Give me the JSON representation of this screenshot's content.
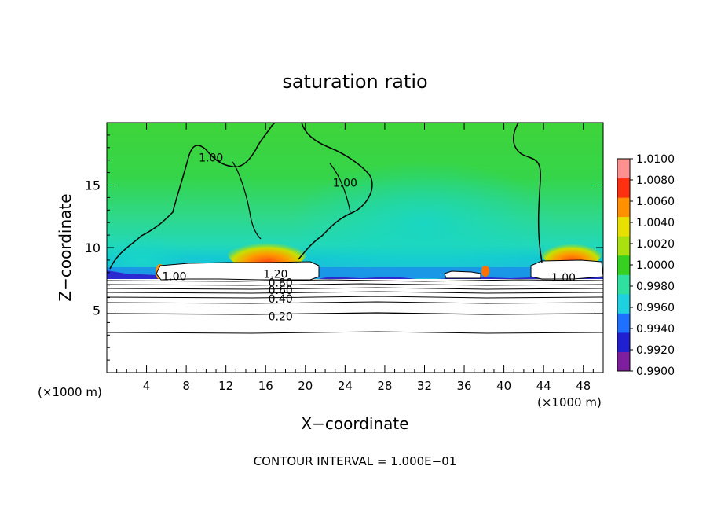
{
  "chart_data": {
    "type": "heatmap",
    "title": "saturation ratio",
    "xlabel": "X−coordinate",
    "ylabel": "Z−coordinate",
    "x_unit_left": "(×1000 m)",
    "x_unit_right": "(×1000 m)",
    "footer": "CONTOUR INTERVAL = 1.000E−01",
    "xlim": [
      0,
      50
    ],
    "ylim": [
      0,
      20
    ],
    "x_ticks": [
      4,
      8,
      12,
      16,
      20,
      24,
      28,
      32,
      36,
      40,
      44,
      48
    ],
    "x_tick_labels": [
      "4",
      "8",
      "12",
      "16",
      "20",
      "24",
      "28",
      "32",
      "36",
      "40",
      "44",
      "48"
    ],
    "y_ticks": [
      5,
      10,
      15
    ],
    "y_tick_labels": [
      "5",
      "10",
      "15"
    ],
    "colorbar": {
      "ticks": [
        {
          "value": 1.01,
          "label": "1.0100"
        },
        {
          "value": 1.008,
          "label": "1.0080"
        },
        {
          "value": 1.006,
          "label": "1.0060"
        },
        {
          "value": 1.004,
          "label": "1.0040"
        },
        {
          "value": 1.002,
          "label": "1.0020"
        },
        {
          "value": 1.0,
          "label": "1.0000"
        },
        {
          "value": 0.998,
          "label": "0.9980"
        },
        {
          "value": 0.996,
          "label": "0.9960"
        },
        {
          "value": 0.994,
          "label": "0.9940"
        },
        {
          "value": 0.992,
          "label": "0.9920"
        },
        {
          "value": 0.99,
          "label": "0.9900"
        }
      ],
      "range": [
        0.99,
        1.01
      ],
      "colors": [
        "#7f1f9f",
        "#2020d0",
        "#1e70ff",
        "#1fd0e0",
        "#30e0a0",
        "#35d020",
        "#aae010",
        "#e8e000",
        "#ff9000",
        "#ff3010",
        "#ff9090"
      ]
    },
    "contours": [
      {
        "label": "1.00",
        "z": 17.2,
        "x": 10.5
      },
      {
        "label": "1.00",
        "z": 15.2,
        "x": 24.0
      },
      {
        "label": "1.00",
        "z": 7.7,
        "x": 6.8
      },
      {
        "label": "1.00",
        "z": 7.6,
        "x": 46.0
      },
      {
        "label": "1.20",
        "z": 7.9,
        "x": 17.0
      },
      {
        "label": "0.80",
        "z": 7.2,
        "x": 17.5
      },
      {
        "label": "0.60",
        "z": 6.6,
        "x": 17.5
      },
      {
        "label": "0.40",
        "z": 5.9,
        "x": 17.5
      },
      {
        "label": "0.20",
        "z": 4.5,
        "x": 17.5
      }
    ]
  }
}
